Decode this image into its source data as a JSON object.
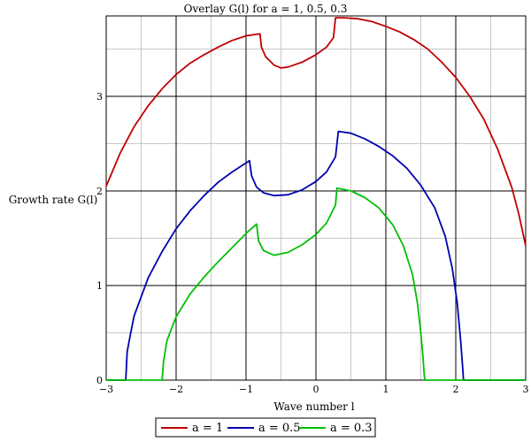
{
  "chart_data": {
    "type": "line",
    "title": "Overlay G(l) for a = 1, 0.5, 0.3",
    "xlabel": "Wave number l",
    "ylabel": "Growth rate G(l)",
    "xlim": [
      -3,
      3
    ],
    "ylim": [
      0,
      3.85
    ],
    "x_ticks": [
      -3,
      -2,
      -1,
      0,
      1,
      2,
      3
    ],
    "y_ticks": [
      0,
      1,
      2,
      3
    ],
    "grid": true,
    "legend_position": "bottom",
    "series": [
      {
        "name": "a = 1",
        "color": "#c00000",
        "points": [
          [
            -3.0,
            2.05
          ],
          [
            -2.8,
            2.4
          ],
          [
            -2.6,
            2.68
          ],
          [
            -2.4,
            2.9
          ],
          [
            -2.2,
            3.08
          ],
          [
            -2.0,
            3.23
          ],
          [
            -1.8,
            3.35
          ],
          [
            -1.6,
            3.44
          ],
          [
            -1.4,
            3.52
          ],
          [
            -1.2,
            3.59
          ],
          [
            -1.0,
            3.64
          ],
          [
            -0.8,
            3.66
          ],
          [
            -0.78,
            3.52
          ],
          [
            -0.72,
            3.42
          ],
          [
            -0.6,
            3.33
          ],
          [
            -0.5,
            3.3
          ],
          [
            -0.4,
            3.31
          ],
          [
            -0.2,
            3.36
          ],
          [
            0.0,
            3.44
          ],
          [
            0.15,
            3.52
          ],
          [
            0.25,
            3.62
          ],
          [
            0.28,
            3.83
          ],
          [
            0.4,
            3.83
          ],
          [
            0.6,
            3.82
          ],
          [
            0.8,
            3.79
          ],
          [
            1.0,
            3.74
          ],
          [
            1.2,
            3.68
          ],
          [
            1.4,
            3.6
          ],
          [
            1.6,
            3.5
          ],
          [
            1.8,
            3.36
          ],
          [
            2.0,
            3.2
          ],
          [
            2.2,
            3.0
          ],
          [
            2.4,
            2.76
          ],
          [
            2.6,
            2.44
          ],
          [
            2.8,
            2.04
          ],
          [
            2.9,
            1.76
          ],
          [
            3.0,
            1.42
          ]
        ]
      },
      {
        "name": "a = 0.5",
        "color": "#0000b0",
        "points": [
          [
            -3.0,
            0.0
          ],
          [
            -2.72,
            0.0
          ],
          [
            -2.7,
            0.3
          ],
          [
            -2.65,
            0.5
          ],
          [
            -2.6,
            0.68
          ],
          [
            -2.4,
            1.08
          ],
          [
            -2.2,
            1.36
          ],
          [
            -2.0,
            1.6
          ],
          [
            -1.8,
            1.79
          ],
          [
            -1.6,
            1.95
          ],
          [
            -1.4,
            2.09
          ],
          [
            -1.2,
            2.2
          ],
          [
            -0.95,
            2.32
          ],
          [
            -0.92,
            2.16
          ],
          [
            -0.85,
            2.04
          ],
          [
            -0.75,
            1.98
          ],
          [
            -0.6,
            1.95
          ],
          [
            -0.4,
            1.96
          ],
          [
            -0.2,
            2.01
          ],
          [
            0.0,
            2.1
          ],
          [
            0.15,
            2.2
          ],
          [
            0.28,
            2.36
          ],
          [
            0.32,
            2.63
          ],
          [
            0.5,
            2.61
          ],
          [
            0.7,
            2.55
          ],
          [
            0.9,
            2.47
          ],
          [
            1.1,
            2.37
          ],
          [
            1.3,
            2.24
          ],
          [
            1.5,
            2.06
          ],
          [
            1.7,
            1.82
          ],
          [
            1.85,
            1.52
          ],
          [
            1.95,
            1.18
          ],
          [
            2.02,
            0.82
          ],
          [
            2.07,
            0.42
          ],
          [
            2.1,
            0.12
          ],
          [
            2.11,
            0.0
          ],
          [
            3.0,
            0.0
          ]
        ]
      },
      {
        "name": "a = 0.3",
        "color": "#00c000",
        "points": [
          [
            -3.0,
            0.0
          ],
          [
            -2.2,
            0.0
          ],
          [
            -2.18,
            0.2
          ],
          [
            -2.13,
            0.42
          ],
          [
            -2.0,
            0.67
          ],
          [
            -1.8,
            0.91
          ],
          [
            -1.6,
            1.09
          ],
          [
            -1.4,
            1.25
          ],
          [
            -1.2,
            1.4
          ],
          [
            -1.0,
            1.55
          ],
          [
            -0.85,
            1.65
          ],
          [
            -0.82,
            1.47
          ],
          [
            -0.75,
            1.37
          ],
          [
            -0.6,
            1.32
          ],
          [
            -0.4,
            1.35
          ],
          [
            -0.2,
            1.43
          ],
          [
            0.0,
            1.54
          ],
          [
            0.15,
            1.66
          ],
          [
            0.28,
            1.85
          ],
          [
            0.3,
            2.03
          ],
          [
            0.5,
            2.0
          ],
          [
            0.7,
            1.93
          ],
          [
            0.9,
            1.82
          ],
          [
            1.1,
            1.64
          ],
          [
            1.25,
            1.42
          ],
          [
            1.38,
            1.12
          ],
          [
            1.45,
            0.82
          ],
          [
            1.5,
            0.5
          ],
          [
            1.53,
            0.25
          ],
          [
            1.55,
            0.05
          ],
          [
            1.56,
            0.0
          ],
          [
            3.0,
            0.0
          ]
        ]
      }
    ]
  }
}
